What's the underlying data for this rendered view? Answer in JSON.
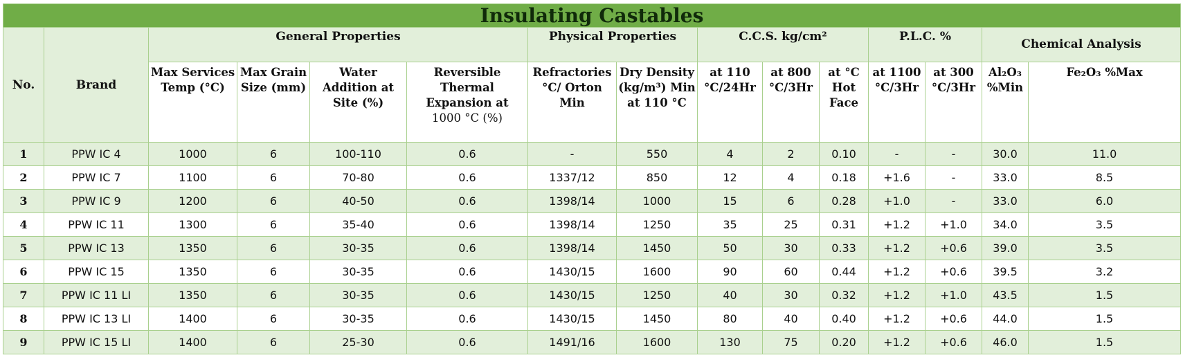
{
  "title": "Insulating Castables",
  "groups": {
    "no": "No.",
    "brand": "Brand",
    "general": "General Properties",
    "physical": "Physical Properties",
    "ccs": "C.C.S. kg/cm²",
    "plc": "P.L.C. %",
    "chemical": "Chemical Analysis"
  },
  "columns": {
    "max_temp": "Max Services Temp (°C)",
    "max_grain": "Max Grain Size (mm)",
    "water": "Water Addition at Site (%)",
    "rte_a": "Reversible Thermal Expansion at",
    "rte_b": "1000 °C (%)",
    "refractories": "Refractories °C/ Orton Min",
    "density": "Dry Density (kg/m³) Min at 110 °C",
    "ccs110": "at 110 °C/24Hr",
    "ccs800": "at 800 °C/3Hr",
    "ccshot": "at °C Hot Face",
    "plc1100": "at 1100 °C/3Hr",
    "plc300": "at 300 °C/3Hr",
    "al2o3": "Al₂O₃ %Min",
    "fe2o3": "Fe₂O₃ %Max"
  },
  "rows": [
    {
      "no": "1",
      "brand": "PPW IC 4",
      "temp": "1000",
      "grain": "6",
      "water": "100-110",
      "rte": "0.6",
      "refr": "-",
      "dens": "550",
      "c110": "4",
      "c800": "2",
      "chot": "0.10",
      "p1100": "-",
      "p300": "-",
      "al": "30.0",
      "fe": "11.0"
    },
    {
      "no": "2",
      "brand": "PPW IC 7",
      "temp": "1100",
      "grain": "6",
      "water": "70-80",
      "rte": "0.6",
      "refr": "1337/12",
      "dens": "850",
      "c110": "12",
      "c800": "4",
      "chot": "0.18",
      "p1100": "+1.6",
      "p300": "-",
      "al": "33.0",
      "fe": "8.5"
    },
    {
      "no": "3",
      "brand": "PPW IC 9",
      "temp": "1200",
      "grain": "6",
      "water": "40-50",
      "rte": "0.6",
      "refr": "1398/14",
      "dens": "1000",
      "c110": "15",
      "c800": "6",
      "chot": "0.28",
      "p1100": "+1.0",
      "p300": "-",
      "al": "33.0",
      "fe": "6.0"
    },
    {
      "no": "4",
      "brand": "PPW IC 11",
      "temp": "1300",
      "grain": "6",
      "water": "35-40",
      "rte": "0.6",
      "refr": "1398/14",
      "dens": "1250",
      "c110": "35",
      "c800": "25",
      "chot": "0.31",
      "p1100": "+1.2",
      "p300": "+1.0",
      "al": "34.0",
      "fe": "3.5"
    },
    {
      "no": "5",
      "brand": "PPW IC 13",
      "temp": "1350",
      "grain": "6",
      "water": "30-35",
      "rte": "0.6",
      "refr": "1398/14",
      "dens": "1450",
      "c110": "50",
      "c800": "30",
      "chot": "0.33",
      "p1100": "+1.2",
      "p300": "+0.6",
      "al": "39.0",
      "fe": "3.5"
    },
    {
      "no": "6",
      "brand": "PPW IC 15",
      "temp": "1350",
      "grain": "6",
      "water": "30-35",
      "rte": "0.6",
      "refr": "1430/15",
      "dens": "1600",
      "c110": "90",
      "c800": "60",
      "chot": "0.44",
      "p1100": "+1.2",
      "p300": "+0.6",
      "al": "39.5",
      "fe": "3.2"
    },
    {
      "no": "7",
      "brand": "PPW IC 11 LI",
      "temp": "1350",
      "grain": "6",
      "water": "30-35",
      "rte": "0.6",
      "refr": "1430/15",
      "dens": "1250",
      "c110": "40",
      "c800": "30",
      "chot": "0.32",
      "p1100": "+1.2",
      "p300": "+1.0",
      "al": "43.5",
      "fe": "1.5"
    },
    {
      "no": "8",
      "brand": "PPW IC 13 LI",
      "temp": "1400",
      "grain": "6",
      "water": "30-35",
      "rte": "0.6",
      "refr": "1430/15",
      "dens": "1450",
      "c110": "80",
      "c800": "40",
      "chot": "0.40",
      "p1100": "+1.2",
      "p300": "+0.6",
      "al": "44.0",
      "fe": "1.5"
    },
    {
      "no": "9",
      "brand": "PPW IC 15 LI",
      "temp": "1400",
      "grain": "6",
      "water": "25-30",
      "rte": "0.6",
      "refr": "1491/16",
      "dens": "1600",
      "c110": "130",
      "c800": "75",
      "chot": "0.20",
      "p1100": "+1.2",
      "p300": "+0.6",
      "al": "46.0",
      "fe": "1.5"
    }
  ],
  "colors": {
    "title_bg": "#70ad47",
    "band": "#e2efda",
    "border": "#a9d08e"
  }
}
